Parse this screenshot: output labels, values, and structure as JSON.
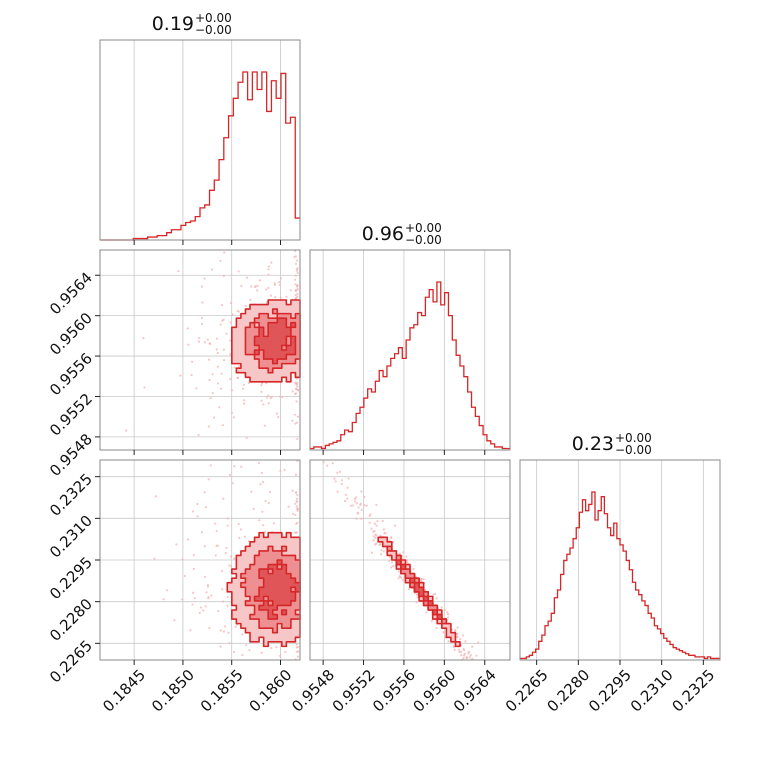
{
  "chart_data": {
    "type": "corner",
    "color": "#d62728",
    "grid": true,
    "parameters": [
      {
        "range": [
          0.18415,
          0.1862
        ],
        "ticks": [
          0.1845,
          0.185,
          0.1855,
          0.186
        ],
        "tick_labels": [
          "0.1845",
          "0.1850",
          "0.1855",
          "0.1860"
        ],
        "title": {
          "value": "0.19",
          "upper": "+0.00",
          "lower": "−0.00"
        }
      },
      {
        "range": [
          0.95467,
          0.95665
        ],
        "ticks": [
          0.9548,
          0.9552,
          0.9556,
          0.956,
          0.9564
        ],
        "tick_labels": [
          "0.9548",
          "0.9552",
          "0.9556",
          "0.9560",
          "0.9564"
        ],
        "title": {
          "value": "0.96",
          "upper": "+0.00",
          "lower": "−0.00"
        }
      },
      {
        "range": [
          0.2259,
          0.2331
        ],
        "ticks": [
          0.2265,
          0.228,
          0.2295,
          0.231,
          0.2325
        ],
        "tick_labels": [
          "0.2265",
          "0.2280",
          "0.2295",
          "0.2310",
          "0.2325"
        ],
        "title": {
          "value": "0.23",
          "upper": "+0.00",
          "lower": "−0.00"
        }
      }
    ],
    "marginals": [
      {
        "parameter": 0,
        "counts": [
          0,
          0,
          0,
          0,
          0,
          0,
          0,
          1,
          1,
          1,
          2,
          2,
          3,
          3,
          5,
          7,
          7,
          10,
          12,
          13,
          16,
          22,
          24,
          34,
          41,
          55,
          70,
          85,
          97,
          108,
          115,
          96,
          115,
          103,
          115,
          88,
          109,
          97,
          114,
          80,
          84,
          15
        ]
      },
      {
        "parameter": 1,
        "counts": [
          1,
          2,
          2,
          1,
          3,
          4,
          5,
          6,
          10,
          13,
          12,
          18,
          24,
          28,
          34,
          40,
          38,
          45,
          52,
          48,
          55,
          60,
          63,
          67,
          60,
          72,
          80,
          82,
          90,
          88,
          100,
          105,
          97,
          110,
          95,
          103,
          88,
          72,
          62,
          55,
          48,
          38,
          28,
          22,
          16,
          10,
          6,
          4,
          2,
          2,
          1,
          1
        ]
      },
      {
        "parameter": 2,
        "counts": [
          1,
          1,
          2,
          3,
          5,
          7,
          12,
          16,
          22,
          25,
          30,
          40,
          45,
          55,
          64,
          68,
          72,
          78,
          85,
          95,
          103,
          96,
          100,
          108,
          90,
          96,
          105,
          94,
          85,
          80,
          88,
          78,
          74,
          70,
          64,
          58,
          50,
          45,
          42,
          38,
          35,
          30,
          27,
          22,
          20,
          17,
          14,
          12,
          10,
          8,
          7,
          6,
          5,
          4,
          3,
          3,
          2,
          2,
          2,
          1,
          2,
          1,
          1,
          1
        ]
      }
    ],
    "pairs": [
      {
        "x": 0,
        "y": 1,
        "density": {
          "x_center": 0.18595,
          "x_sigma": 0.00025,
          "y_center": 0.95575,
          "y_sigma": 0.00022,
          "rho": 0.1,
          "x_max": 0.18618
        }
      },
      {
        "x": 0,
        "y": 2,
        "density": {
          "x_center": 0.18595,
          "x_sigma": 0.00025,
          "y_center": 0.22845,
          "y_sigma": 0.0011,
          "rho": 0.0,
          "x_max": 0.18618
        }
      },
      {
        "x": 1,
        "y": 2,
        "density": {
          "x_center": 0.95575,
          "x_sigma": 0.00022,
          "y_center": 0.22845,
          "y_sigma": 0.0011,
          "rho": -0.99
        }
      }
    ]
  }
}
